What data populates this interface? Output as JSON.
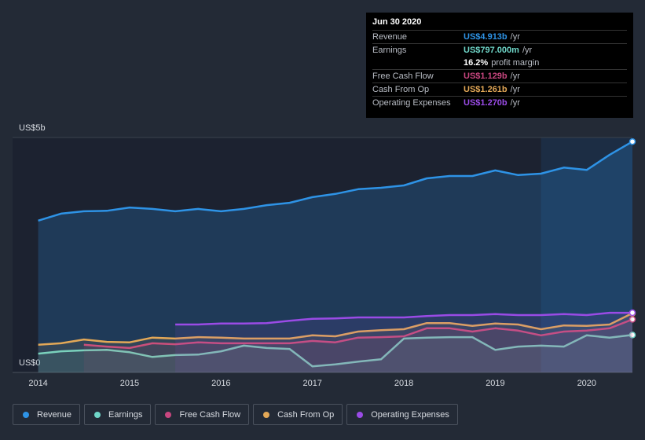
{
  "chart_data": {
    "type": "line",
    "x": [
      2014,
      2014.25,
      2014.5,
      2014.75,
      2015,
      2015.25,
      2015.5,
      2015.75,
      2016,
      2016.25,
      2016.5,
      2016.75,
      2017,
      2017.25,
      2017.5,
      2017.75,
      2018,
      2018.25,
      2018.5,
      2018.75,
      2019,
      2019.25,
      2019.5,
      2019.75,
      2020,
      2020.25,
      2020.5
    ],
    "xlim": [
      2013.72,
      2020.5
    ],
    "xticks": [
      2014,
      2015,
      2016,
      2017,
      2018,
      2019,
      2020
    ],
    "ylim": [
      0,
      5
    ],
    "yticks": [
      {
        "value": 0,
        "label": "US$0"
      },
      {
        "value": 5,
        "label": "US$5b"
      }
    ],
    "grid": true,
    "highlight_from": 2019.5,
    "series": [
      {
        "name": "Revenue",
        "color": "#2e93e6",
        "values": [
          3.23,
          3.38,
          3.43,
          3.44,
          3.51,
          3.48,
          3.43,
          3.48,
          3.43,
          3.48,
          3.56,
          3.61,
          3.73,
          3.8,
          3.9,
          3.93,
          3.98,
          4.13,
          4.18,
          4.18,
          4.3,
          4.2,
          4.23,
          4.36,
          4.31,
          4.63,
          4.913
        ]
      },
      {
        "name": "Earnings",
        "color": "#6fd6c8",
        "values": [
          0.4,
          0.45,
          0.47,
          0.48,
          0.43,
          0.33,
          0.37,
          0.38,
          0.45,
          0.57,
          0.52,
          0.5,
          0.13,
          0.17,
          0.23,
          0.28,
          0.72,
          0.74,
          0.75,
          0.75,
          0.48,
          0.55,
          0.57,
          0.55,
          0.79,
          0.74,
          0.797
        ]
      },
      {
        "name": "Free Cash Flow",
        "color": "#c8467f",
        "values": [
          null,
          null,
          0.59,
          0.55,
          0.52,
          0.62,
          0.6,
          0.64,
          0.62,
          0.62,
          0.62,
          0.62,
          0.67,
          0.64,
          0.74,
          0.75,
          0.77,
          0.94,
          0.94,
          0.87,
          0.94,
          0.89,
          0.79,
          0.87,
          0.89,
          0.94,
          1.129
        ]
      },
      {
        "name": "Cash From Op",
        "color": "#e3a857",
        "values": [
          0.59,
          0.62,
          0.7,
          0.65,
          0.64,
          0.74,
          0.72,
          0.75,
          0.74,
          0.72,
          0.72,
          0.72,
          0.79,
          0.77,
          0.87,
          0.9,
          0.92,
          1.05,
          1.05,
          0.99,
          1.04,
          1.02,
          0.92,
          1.0,
          0.99,
          1.02,
          1.261
        ]
      },
      {
        "name": "Operating Expenses",
        "color": "#9a4be6",
        "values": [
          null,
          null,
          null,
          null,
          null,
          null,
          1.02,
          1.02,
          1.04,
          1.04,
          1.05,
          1.1,
          1.14,
          1.15,
          1.17,
          1.17,
          1.17,
          1.2,
          1.22,
          1.22,
          1.24,
          1.22,
          1.22,
          1.24,
          1.22,
          1.27,
          1.27
        ]
      }
    ],
    "tooltip": {
      "title": "Jun 30 2020",
      "rows": [
        {
          "label": "Revenue",
          "value": "US$4.913b",
          "unit": "/yr",
          "color": "#2e93e6"
        },
        {
          "label": "Earnings",
          "value": "US$797.000m",
          "unit": "/yr",
          "color": "#6fd6c8"
        },
        {
          "value": "16.2%",
          "unit": "profit margin",
          "color": "#ffffff"
        },
        {
          "label": "Free Cash Flow",
          "value": "US$1.129b",
          "unit": "/yr",
          "color": "#c8467f"
        },
        {
          "label": "Cash From Op",
          "value": "US$1.261b",
          "unit": "/yr",
          "color": "#e3a857"
        },
        {
          "label": "Operating Expenses",
          "value": "US$1.270b",
          "unit": "/yr",
          "color": "#9a4be6"
        }
      ]
    }
  }
}
